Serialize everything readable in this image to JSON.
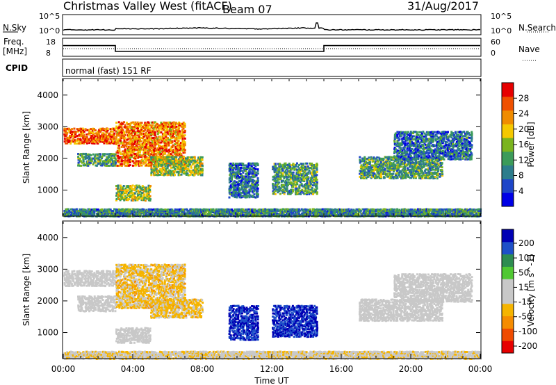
{
  "header": {
    "station": "Christmas Valley West (fitACF)",
    "beam": "Beam 07",
    "date": "31/Aug/2017"
  },
  "strip_panels": {
    "nsky_label": "N.Sky",
    "nsearch_label": "N.Search",
    "freq_label": "Freq.",
    "freq_unit": "[MHz]",
    "nave_label": "Nave",
    "cpid_label": "CPID",
    "cpid_value": "normal (fast) 151 RF",
    "noise_ticks_left": [
      "10^5",
      "10^0"
    ],
    "noise_ticks_right": [
      "10^5",
      "10^0"
    ],
    "freq_ticks_left": [
      "18",
      "8"
    ],
    "freq_ticks_right": [
      "60",
      "0"
    ]
  },
  "colors": {
    "power_scale": [
      "#0000e6",
      "#1e46c8",
      "#2d7d8c",
      "#3c9b5a",
      "#7ab41e",
      "#f5c800",
      "#f08c00",
      "#ef5000",
      "#e60000"
    ],
    "velocity_scale": [
      "#e60000",
      "#ef4b00",
      "#f58c00",
      "#f5b400",
      "#c8c8c8",
      "#c8c8c8",
      "#50c832",
      "#2d8c50",
      "#1e50c8",
      "#0000b4"
    ]
  },
  "chart_data": [
    {
      "type": "heatmap",
      "title": "",
      "ylabel": "Slant Range [km]",
      "ylim": [
        200,
        4500
      ],
      "yticks": [
        "4000",
        "3000",
        "2000",
        "1000"
      ],
      "colorbar_label": "Power [dB]",
      "colorbar_ticks": [
        "28",
        "24",
        "20",
        "16",
        "12",
        "8",
        "4"
      ],
      "colorbar_range": [
        0,
        32
      ],
      "features": [
        {
          "t_start": 0.0,
          "t_end": 3.0,
          "r_start": 2500,
          "r_end": 3000,
          "value": 26
        },
        {
          "t_start": 0.8,
          "t_end": 3.0,
          "r_start": 1800,
          "r_end": 2200,
          "value": 12
        },
        {
          "t_start": 3.0,
          "t_end": 7.0,
          "r_start": 1800,
          "r_end": 3200,
          "value": 24
        },
        {
          "t_start": 3.0,
          "t_end": 5.0,
          "r_start": 700,
          "r_end": 1200,
          "value": 16
        },
        {
          "t_start": 5.0,
          "t_end": 8.0,
          "r_start": 1500,
          "r_end": 2100,
          "value": 16
        },
        {
          "t_start": 9.5,
          "t_end": 11.2,
          "r_start": 800,
          "r_end": 1900,
          "value": 8
        },
        {
          "t_start": 12.0,
          "t_end": 14.6,
          "r_start": 900,
          "r_end": 1900,
          "value": 12
        },
        {
          "t_start": 17.0,
          "t_end": 21.8,
          "r_start": 1400,
          "r_end": 2100,
          "value": 12
        },
        {
          "t_start": 19.0,
          "t_end": 23.5,
          "r_start": 2000,
          "r_end": 2900,
          "value": 8
        },
        {
          "t_start": 0.0,
          "t_end": 24.0,
          "r_start": 200,
          "r_end": 450,
          "value": 10
        }
      ]
    },
    {
      "type": "heatmap",
      "title": "",
      "xlabel": "Time UT",
      "ylabel": "Slant Range [km]",
      "xlim": [
        0,
        24
      ],
      "ylim": [
        200,
        4500
      ],
      "xticks": [
        "00:00",
        "04:00",
        "08:00",
        "12:00",
        "16:00",
        "20:00",
        "00:00"
      ],
      "yticks": [
        "4000",
        "3000",
        "2000",
        "1000"
      ],
      "colorbar_label": "Velocity [m s^-1]",
      "colorbar_ticks": [
        "200",
        "100",
        "50",
        "15",
        "-15",
        "-50",
        "-100",
        "-200"
      ],
      "colorbar_range": [
        -250,
        250
      ],
      "features": [
        {
          "t_start": 0.0,
          "t_end": 3.0,
          "r_start": 2500,
          "r_end": 3000,
          "value": 0
        },
        {
          "t_start": 0.8,
          "t_end": 3.0,
          "r_start": 1700,
          "r_end": 2200,
          "value": 0
        },
        {
          "t_start": 3.0,
          "t_end": 7.0,
          "r_start": 1800,
          "r_end": 3200,
          "value": -60
        },
        {
          "t_start": 3.0,
          "t_end": 5.0,
          "r_start": 700,
          "r_end": 1200,
          "value": 0
        },
        {
          "t_start": 5.0,
          "t_end": 8.0,
          "r_start": 1500,
          "r_end": 2100,
          "value": -60
        },
        {
          "t_start": 9.5,
          "t_end": 11.2,
          "r_start": 800,
          "r_end": 1900,
          "value": 200
        },
        {
          "t_start": 12.0,
          "t_end": 14.6,
          "r_start": 900,
          "r_end": 1900,
          "value": 200
        },
        {
          "t_start": 17.0,
          "t_end": 21.8,
          "r_start": 1400,
          "r_end": 2100,
          "value": 0
        },
        {
          "t_start": 19.0,
          "t_end": 23.5,
          "r_start": 2000,
          "r_end": 2900,
          "value": 0
        },
        {
          "t_start": 0.0,
          "t_end": 24.0,
          "r_start": 200,
          "r_end": 450,
          "value": -30
        }
      ]
    }
  ],
  "frequency_series": {
    "times": [
      0,
      3,
      3,
      15,
      15,
      24
    ],
    "freq_mhz": [
      14,
      14,
      10.5,
      10.5,
      14,
      14
    ]
  }
}
